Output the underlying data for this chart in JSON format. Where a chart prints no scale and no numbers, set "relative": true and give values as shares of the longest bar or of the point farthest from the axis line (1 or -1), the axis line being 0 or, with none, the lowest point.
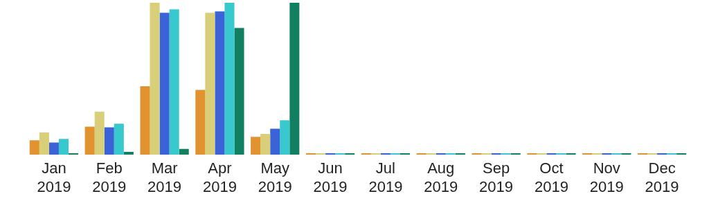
{
  "chart_data": {
    "type": "bar",
    "relative": true,
    "legend": false,
    "grid": false,
    "categories": [
      "Jan 2019",
      "Feb 2019",
      "Mar 2019",
      "Apr 2019",
      "May 2019",
      "Jun 2019",
      "Jul 2019",
      "Aug 2019",
      "Sep 2019",
      "Oct 2019",
      "Nov 2019",
      "Dec 2019"
    ],
    "series": [
      {
        "color": "#e0932f",
        "values": [
          0.095,
          0.185,
          0.45,
          0.427,
          0.118,
          0.01,
          0.01,
          0.01,
          0.01,
          0.01,
          0.01,
          0.01
        ]
      },
      {
        "color": "#d9cf78",
        "values": [
          0.147,
          0.284,
          1,
          0.934,
          0.137,
          0.01,
          0.01,
          0.01,
          0.01,
          0.01,
          0.01,
          0.01
        ]
      },
      {
        "color": "#3a63d8",
        "values": [
          0.08,
          0.18,
          0.934,
          0.943,
          0.171,
          0.01,
          0.01,
          0.01,
          0.01,
          0.01,
          0.01,
          0.01
        ]
      },
      {
        "color": "#38c9cf",
        "values": [
          0.104,
          0.204,
          0.957,
          1,
          0.227,
          0.01,
          0.01,
          0.01,
          0.01,
          0.01,
          0.01,
          0.01
        ]
      },
      {
        "color": "#118060",
        "values": [
          0.01,
          0.019,
          0.038,
          0.834,
          1,
          0.01,
          0.01,
          0.01,
          0.01,
          0.01,
          0.01,
          0.01
        ]
      }
    ]
  }
}
